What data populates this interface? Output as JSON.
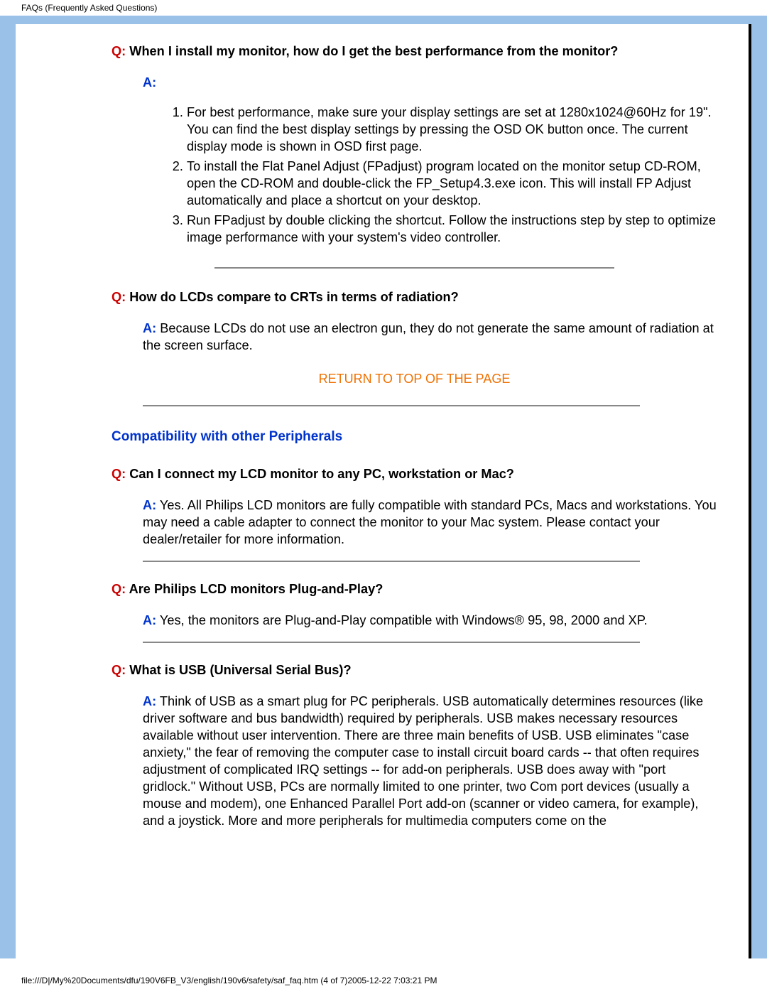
{
  "header": "FAQs (Frequently Asked Questions)",
  "footer": "file:///D|/My%20Documents/dfu/190V6FB_V3/english/190v6/safety/saf_faq.htm (4 of 7)2005-12-22 7:03:21 PM",
  "labels": {
    "q": "Q:",
    "a": "A:"
  },
  "topLink": "RETURN TO TOP OF THE PAGE",
  "colors": {
    "pageBg": "#9ac1e8",
    "qColor": "#cc0000",
    "aColor": "#0033cc",
    "linkColor": "#f07000",
    "ruleColor": "#888888",
    "text": "#000000"
  },
  "faq1": {
    "q": " When I install my monitor, how do I get the best performance from the monitor?",
    "list": [
      "For best performance, make sure your display settings are set at 1280x1024@60Hz for 19\". You can find the best display settings by pressing the OSD OK button once. The current display mode is shown in OSD first page.",
      "To install the Flat Panel Adjust (FPadjust) program located on the monitor setup CD-ROM, open the CD-ROM and double-click the FP_Setup4.3.exe icon. This will install FP Adjust automatically and place a shortcut on your desktop.",
      "Run FPadjust by double clicking the shortcut. Follow the instructions step by step to optimize image performance with your system's video controller."
    ]
  },
  "faq2": {
    "q": " How do LCDs compare to CRTs in terms of radiation?",
    "a": " Because LCDs do not use an electron gun, they do not generate the same amount of radiation at the screen surface."
  },
  "section2": "Compatibility with other Peripherals",
  "faq3": {
    "q": " Can I connect my LCD monitor to any PC, workstation or Mac?",
    "a": " Yes. All Philips LCD monitors are fully compatible with standard PCs, Macs and workstations. You may need a cable adapter to connect the monitor to your Mac system. Please contact your dealer/retailer for more information."
  },
  "faq4": {
    "q": " Are Philips LCD monitors Plug-and-Play?",
    "a": " Yes, the monitors are Plug-and-Play compatible with Windows® 95, 98, 2000 and XP."
  },
  "faq5": {
    "q": " What is USB (Universal Serial Bus)?",
    "a": " Think of USB as a smart plug for PC peripherals. USB automatically determines resources (like driver software and bus bandwidth) required by peripherals. USB makes necessary resources available without user intervention. There are three main benefits of USB. USB eliminates \"case anxiety,\" the fear of removing the computer case to install circuit board cards -- that often requires adjustment of complicated IRQ settings -- for add-on peripherals. USB does away with \"port gridlock.\" Without USB, PCs are normally limited to one printer, two Com port devices (usually a mouse and modem), one Enhanced Parallel Port add-on (scanner or video camera, for example), and a joystick. More and more peripherals for multimedia computers come on the"
  }
}
